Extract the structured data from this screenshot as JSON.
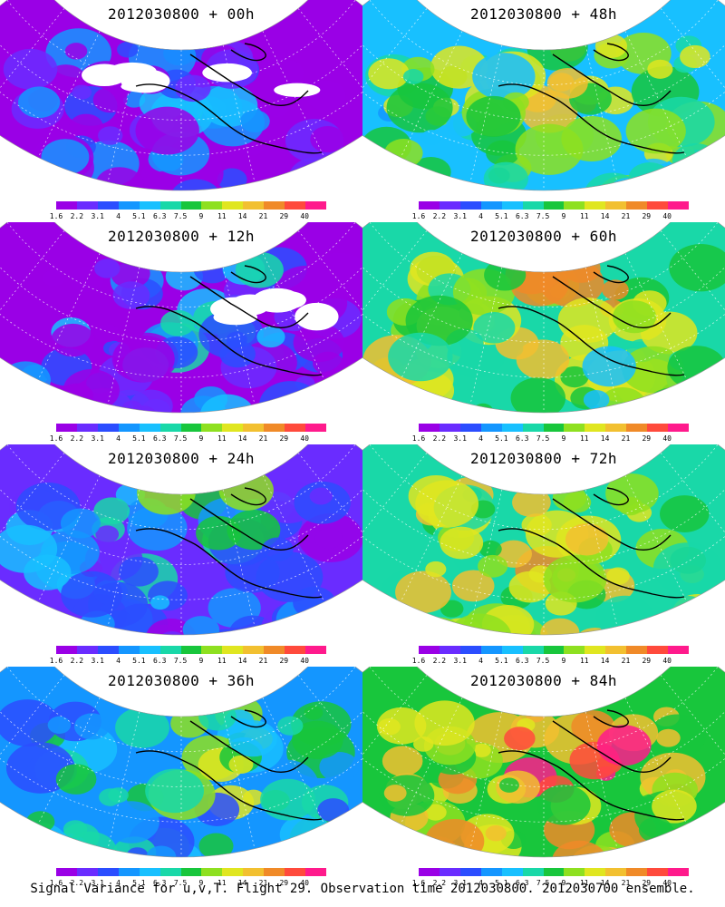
{
  "caption": "Signal Variance for u,v,T. Flight 29. Observation time 2012030800. 2012030700 ensemble.",
  "colorbar": {
    "labels": [
      "1.6",
      "2.2",
      "3.1",
      "4",
      "5.1",
      "6.3",
      "7.5",
      "9",
      "11",
      "14",
      "21",
      "29",
      "40"
    ],
    "colors": [
      "#9a00e6",
      "#6a2cff",
      "#2b4dff",
      "#1496ff",
      "#18c0ff",
      "#19d8a8",
      "#18c63c",
      "#8ee020",
      "#e0e620",
      "#f2c030",
      "#f08a28",
      "#ff4a3c",
      "#ff1a8c"
    ]
  },
  "panels": [
    {
      "title": "2012030800 + 00h",
      "level": 0.05
    },
    {
      "title": "2012030800 + 48h",
      "level": 0.62
    },
    {
      "title": "2012030800 + 12h",
      "level": 0.15
    },
    {
      "title": "2012030800 + 60h",
      "level": 0.7
    },
    {
      "title": "2012030800 + 24h",
      "level": 0.3
    },
    {
      "title": "2012030800 + 72h",
      "level": 0.8
    },
    {
      "title": "2012030800 + 36h",
      "level": 0.45
    },
    {
      "title": "2012030800 + 84h",
      "level": 0.88
    }
  ]
}
